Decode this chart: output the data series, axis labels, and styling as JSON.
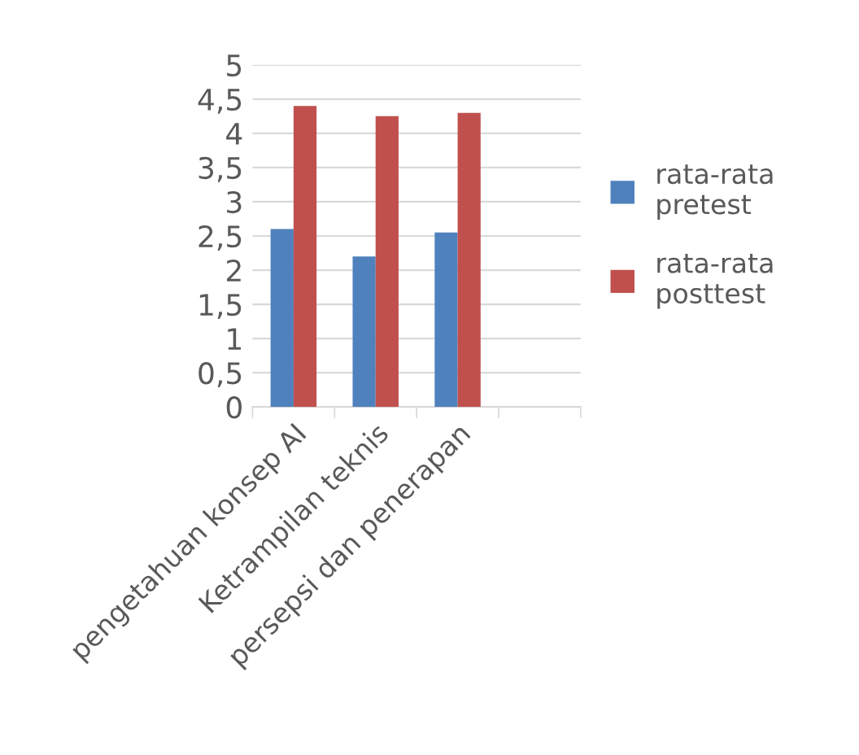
{
  "chart_data": {
    "type": "bar",
    "categories": [
      "pengetahuan konsep AI",
      "Ketrampilan teknis",
      "persepsi dan penerapan",
      null
    ],
    "series": [
      {
        "name": "rata-rata pretest",
        "color": "#4f81bd",
        "values": [
          2.6,
          2.2,
          2.55,
          null
        ]
      },
      {
        "name": "rata-rata posttest",
        "color": "#c0504d",
        "values": [
          4.4,
          4.25,
          4.3,
          null
        ]
      }
    ],
    "ylim": [
      0,
      5
    ],
    "yticks": [
      0,
      {
        "value": 0.5,
        "label": "0,5"
      },
      1,
      {
        "value": 1.5,
        "label": "1,5"
      },
      2,
      {
        "value": 2.5,
        "label": "2,5"
      },
      3,
      {
        "value": 3.5,
        "label": "3,5"
      },
      4,
      {
        "value": 4.5,
        "label": "4,5"
      },
      5
    ],
    "grid": "y",
    "legend": "right"
  }
}
